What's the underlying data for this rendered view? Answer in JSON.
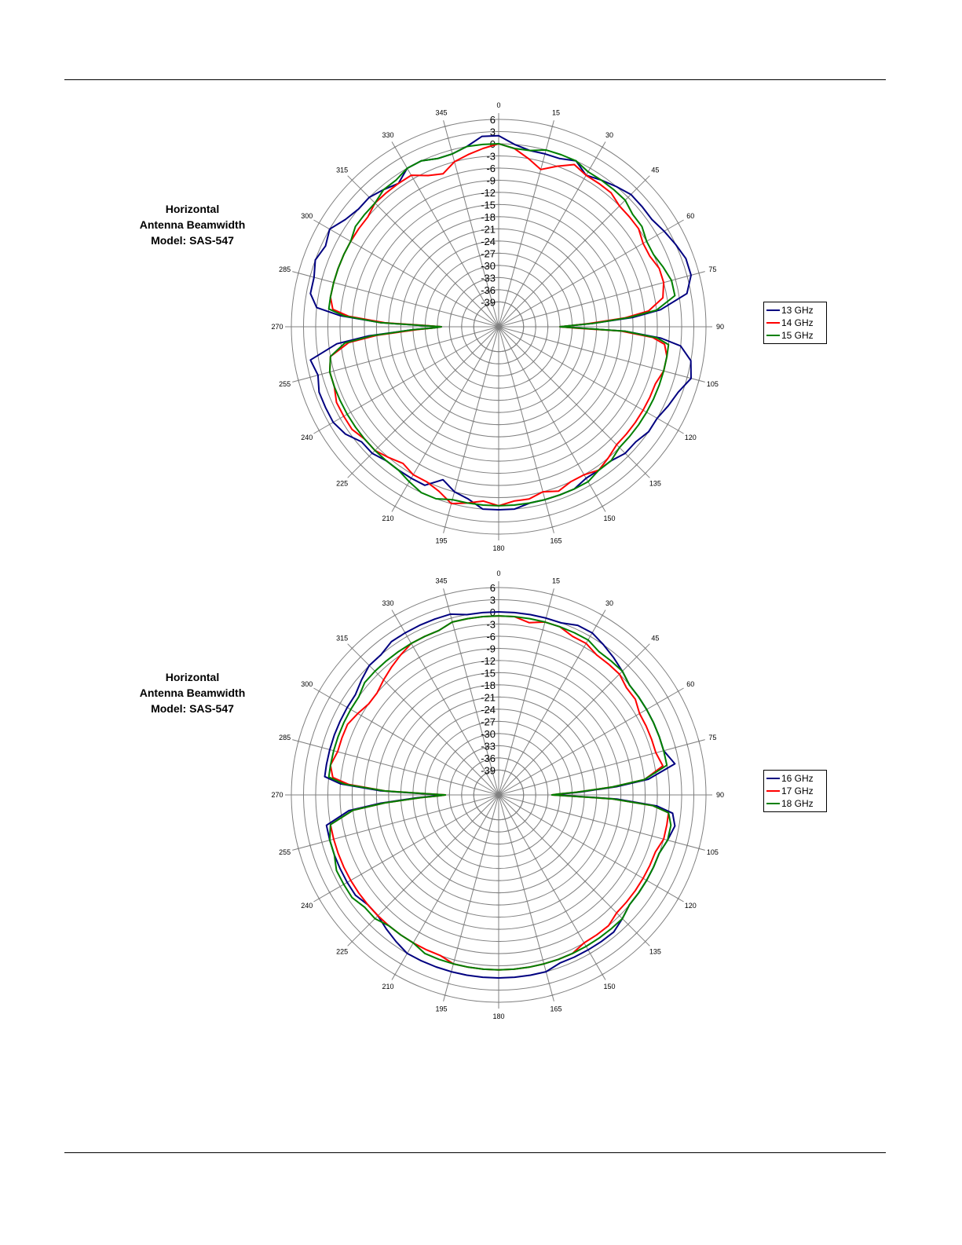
{
  "charts": [
    {
      "caption": [
        "Horizontal",
        "Antenna Beamwidth",
        "Model: SAS-547"
      ]
    },
    {
      "caption": [
        "Horizontal",
        "Antenna Beamwidth",
        "Model: SAS-547"
      ]
    }
  ],
  "chart_data": [
    {
      "type": "polar",
      "title": "",
      "angle_unit": "degrees",
      "angle_ticks": [
        0,
        15,
        30,
        45,
        60,
        75,
        90,
        105,
        120,
        135,
        150,
        165,
        180,
        195,
        210,
        225,
        240,
        255,
        270,
        285,
        300,
        315,
        330,
        345
      ],
      "radial_ticks": [
        6,
        3,
        0,
        -3,
        -6,
        -9,
        -12,
        -15,
        -18,
        -21,
        -24,
        -27,
        -30,
        -33,
        -36,
        -39
      ],
      "rlim": [
        -39,
        6
      ],
      "grid": true,
      "legend_position": "right",
      "series": [
        {
          "name": "13 GHz",
          "color": "#000080",
          "angles": [
            0,
            5,
            10,
            15,
            20,
            25,
            30,
            35,
            40,
            45,
            50,
            55,
            60,
            65,
            70,
            75,
            80,
            84,
            86,
            88,
            89,
            90,
            91,
            92,
            94,
            96,
            100,
            105,
            110,
            115,
            120,
            125,
            130,
            135,
            140,
            145,
            150,
            155,
            160,
            165,
            170,
            175,
            180,
            185,
            190,
            195,
            200,
            205,
            210,
            215,
            220,
            225,
            230,
            235,
            240,
            245,
            250,
            255,
            260,
            264,
            266,
            268,
            269,
            270,
            271,
            272,
            274,
            276,
            280,
            285,
            290,
            295,
            300,
            305,
            310,
            315,
            320,
            325,
            330,
            335,
            340,
            345,
            350,
            355
          ],
          "values": [
            2,
            0,
            -1,
            -1,
            -1,
            0,
            -2,
            -1,
            0,
            1,
            1,
            1,
            2,
            3,
            4,
            4,
            2,
            -5,
            -12,
            -22,
            -27,
            -30,
            -25,
            -14,
            -5,
            0,
            3,
            4,
            2,
            1,
            0,
            0,
            -1,
            -1,
            -2,
            -2,
            -2,
            -1,
            -1,
            -1,
            -1,
            0,
            0,
            0,
            -2,
            -3,
            -5,
            -2,
            -2,
            -2,
            -2,
            -1,
            -1,
            1,
            2,
            2,
            2,
            1,
            2,
            -5,
            -13,
            -24,
            -29,
            -31,
            -26,
            -16,
            -6,
            0,
            2,
            2,
            3,
            2,
            3,
            1,
            0,
            0,
            -1,
            -2,
            0,
            0,
            -1,
            -1,
            0,
            2
          ]
        },
        {
          "name": "14 GHz",
          "color": "#ff0000",
          "angles": [
            0,
            5,
            10,
            15,
            20,
            25,
            30,
            35,
            40,
            45,
            50,
            55,
            60,
            65,
            70,
            75,
            80,
            84,
            86,
            88,
            89,
            90,
            91,
            92,
            94,
            96,
            100,
            105,
            110,
            115,
            120,
            125,
            130,
            135,
            140,
            145,
            150,
            155,
            160,
            165,
            170,
            175,
            180,
            185,
            190,
            195,
            200,
            205,
            210,
            215,
            220,
            225,
            230,
            235,
            240,
            245,
            250,
            255,
            260,
            264,
            266,
            268,
            269,
            270,
            271,
            272,
            274,
            276,
            280,
            285,
            290,
            295,
            300,
            305,
            310,
            315,
            320,
            325,
            330,
            335,
            340,
            345,
            350,
            355
          ],
          "values": [
            0,
            -1,
            -3,
            -5,
            -3,
            -1,
            -2,
            -2,
            -2,
            -3,
            -3,
            -3,
            -4,
            -4,
            -3,
            -3,
            -4,
            -8,
            -14,
            -23,
            -27,
            -30,
            -26,
            -15,
            -7,
            -4,
            -3,
            -3,
            -4,
            -4,
            -4,
            -4,
            -4,
            -4,
            -3,
            -2,
            -3,
            -3,
            -2,
            -3,
            -2,
            -2,
            -1,
            -2,
            -1,
            0,
            -2,
            -3,
            -3,
            -4,
            -3,
            -2,
            -2,
            -1,
            -1,
            -1,
            -2,
            -2,
            -3,
            -8,
            -15,
            -25,
            -29,
            -31,
            -27,
            -17,
            -8,
            -4,
            -3,
            -3,
            -3,
            -3,
            -3,
            -3,
            -3,
            -2,
            -2,
            -2,
            -2,
            -4,
            -5,
            -3,
            -2,
            -1
          ]
        },
        {
          "name": "15 GHz",
          "color": "#008000",
          "angles": [
            0,
            5,
            10,
            15,
            20,
            25,
            30,
            35,
            40,
            45,
            50,
            55,
            60,
            65,
            70,
            75,
            80,
            84,
            86,
            88,
            89,
            90,
            91,
            92,
            94,
            96,
            100,
            105,
            110,
            115,
            120,
            125,
            130,
            135,
            140,
            145,
            150,
            155,
            160,
            165,
            170,
            175,
            180,
            185,
            190,
            195,
            200,
            205,
            210,
            215,
            220,
            225,
            230,
            235,
            240,
            245,
            250,
            255,
            260,
            264,
            266,
            268,
            269,
            270,
            271,
            272,
            274,
            276,
            280,
            285,
            290,
            295,
            300,
            305,
            310,
            315,
            320,
            325,
            330,
            335,
            340,
            345,
            350,
            355
          ],
          "values": [
            0,
            -1,
            -1,
            0,
            0,
            0,
            -1,
            -1,
            -1,
            -1,
            -2,
            -2,
            -3,
            -3,
            -2,
            -1,
            -1,
            -6,
            -13,
            -22,
            -27,
            -30,
            -25,
            -14,
            -6,
            -3,
            -3,
            -3,
            -3,
            -3,
            -3,
            -3,
            -3,
            -3,
            -2,
            -2,
            -1,
            -1,
            -1,
            -1,
            -1,
            -1,
            -1,
            -1,
            -1,
            -1,
            0,
            0,
            -1,
            -2,
            -2,
            -2,
            -2,
            -2,
            -2,
            -2,
            -2,
            -2,
            -3,
            -7,
            -14,
            -24,
            -29,
            -31,
            -26,
            -16,
            -7,
            -3,
            -3,
            -3,
            -3,
            -3,
            -3,
            -2,
            -2,
            -2,
            -1,
            -1,
            0,
            0,
            -1,
            -1,
            0,
            0
          ]
        }
      ]
    },
    {
      "type": "polar",
      "title": "",
      "angle_unit": "degrees",
      "angle_ticks": [
        0,
        15,
        30,
        45,
        60,
        75,
        90,
        105,
        120,
        135,
        150,
        165,
        180,
        195,
        210,
        225,
        240,
        255,
        270,
        285,
        300,
        315,
        330,
        345
      ],
      "radial_ticks": [
        6,
        3,
        0,
        -3,
        -6,
        -9,
        -12,
        -15,
        -18,
        -21,
        -24,
        -27,
        -30,
        -33,
        -36,
        -39
      ],
      "rlim": [
        -39,
        6
      ],
      "grid": true,
      "legend_position": "right",
      "series": [
        {
          "name": "16 GHz",
          "color": "#000080",
          "angles": [
            0,
            5,
            10,
            15,
            20,
            25,
            30,
            35,
            40,
            45,
            50,
            55,
            60,
            65,
            70,
            75,
            80,
            84,
            86,
            88,
            89,
            90,
            91,
            92,
            94,
            96,
            100,
            105,
            110,
            115,
            120,
            125,
            130,
            135,
            140,
            145,
            150,
            155,
            160,
            165,
            170,
            175,
            180,
            185,
            190,
            195,
            200,
            205,
            210,
            215,
            220,
            225,
            230,
            235,
            240,
            245,
            250,
            255,
            260,
            264,
            266,
            268,
            269,
            270,
            271,
            272,
            274,
            276,
            280,
            285,
            290,
            295,
            300,
            305,
            310,
            315,
            320,
            325,
            330,
            335,
            340,
            345,
            350,
            355
          ],
          "values": [
            0,
            0,
            0,
            0,
            0,
            1,
            1,
            0,
            -1,
            -2,
            -3,
            -3,
            -3,
            -3,
            -3,
            -3,
            -1,
            -8,
            -16,
            -25,
            -29,
            -31,
            -26,
            -16,
            -6,
            -2,
            -1,
            -2,
            -3,
            -3,
            -3,
            -3,
            -3,
            -2,
            -1,
            -1,
            -1,
            -1,
            -1,
            0,
            0,
            0,
            0,
            0,
            0,
            0,
            0,
            0,
            0,
            -1,
            -2,
            -3,
            -3,
            -2,
            -2,
            -2,
            -2,
            -2,
            -2,
            -8,
            -16,
            -25,
            -29,
            -31,
            -26,
            -16,
            -6,
            -2,
            -2,
            -2,
            -2,
            -2,
            -2,
            -2,
            -1,
            0,
            0,
            1,
            1,
            1,
            1,
            1,
            0,
            0
          ]
        },
        {
          "name": "17 GHz",
          "color": "#ff0000",
          "angles": [
            0,
            5,
            10,
            15,
            20,
            25,
            30,
            35,
            40,
            45,
            50,
            55,
            60,
            65,
            70,
            75,
            80,
            84,
            86,
            88,
            89,
            90,
            91,
            92,
            94,
            96,
            100,
            105,
            110,
            115,
            120,
            125,
            130,
            135,
            140,
            145,
            150,
            155,
            160,
            165,
            170,
            175,
            180,
            185,
            190,
            195,
            200,
            205,
            210,
            215,
            220,
            225,
            230,
            235,
            240,
            245,
            250,
            255,
            260,
            264,
            266,
            268,
            269,
            270,
            271,
            272,
            274,
            276,
            280,
            285,
            290,
            295,
            300,
            305,
            310,
            315,
            320,
            325,
            330,
            335,
            340,
            345,
            350,
            355
          ],
          "values": [
            -1,
            -1,
            -2,
            -1,
            -1,
            -2,
            -2,
            -3,
            -3,
            -3,
            -4,
            -4,
            -5,
            -5,
            -5,
            -5,
            -4,
            -9,
            -17,
            -26,
            -30,
            -32,
            -27,
            -17,
            -7,
            -3,
            -3,
            -3,
            -4,
            -4,
            -4,
            -4,
            -4,
            -4,
            -3,
            -3,
            -3,
            -2,
            -2,
            -2,
            -2,
            -2,
            -2,
            -2,
            -2,
            -2,
            -3,
            -3,
            -3,
            -3,
            -3,
            -3,
            -3,
            -3,
            -3,
            -3,
            -3,
            -3,
            -3,
            -9,
            -17,
            -26,
            -30,
            -32,
            -27,
            -17,
            -8,
            -4,
            -3,
            -4,
            -4,
            -4,
            -5,
            -6,
            -6,
            -5,
            -4,
            -3,
            -2,
            -2,
            -2,
            -1,
            -1,
            -1
          ]
        },
        {
          "name": "18 GHz",
          "color": "#008000",
          "angles": [
            0,
            5,
            10,
            15,
            20,
            25,
            30,
            35,
            40,
            45,
            50,
            55,
            60,
            65,
            70,
            75,
            80,
            84,
            86,
            88,
            89,
            90,
            91,
            92,
            94,
            96,
            100,
            105,
            110,
            115,
            120,
            125,
            130,
            135,
            140,
            145,
            150,
            155,
            160,
            165,
            170,
            175,
            180,
            185,
            190,
            195,
            200,
            205,
            210,
            215,
            220,
            225,
            230,
            235,
            240,
            245,
            250,
            255,
            260,
            264,
            266,
            268,
            269,
            270,
            271,
            272,
            274,
            276,
            280,
            285,
            290,
            295,
            300,
            305,
            310,
            315,
            320,
            325,
            330,
            335,
            340,
            345,
            350,
            355
          ],
          "values": [
            -1,
            -1,
            -1,
            -1,
            -1,
            -1,
            -1,
            -2,
            -2,
            -2,
            -3,
            -3,
            -3,
            -3,
            -3,
            -3,
            -3,
            -9,
            -17,
            -26,
            -30,
            -32,
            -27,
            -17,
            -7,
            -3,
            -2,
            -2,
            -3,
            -3,
            -3,
            -3,
            -3,
            -2,
            -2,
            -2,
            -2,
            -2,
            -2,
            -2,
            -2,
            -2,
            -2,
            -2,
            -2,
            -2,
            -2,
            -2,
            -3,
            -3,
            -3,
            -2,
            -2,
            -1,
            -1,
            -1,
            -2,
            -2,
            -3,
            -9,
            -17,
            -26,
            -30,
            -32,
            -27,
            -17,
            -7,
            -3,
            -3,
            -3,
            -3,
            -3,
            -3,
            -3,
            -2,
            -2,
            -2,
            -2,
            -2,
            -2,
            -2,
            -1,
            -1,
            -1
          ]
        }
      ]
    }
  ]
}
